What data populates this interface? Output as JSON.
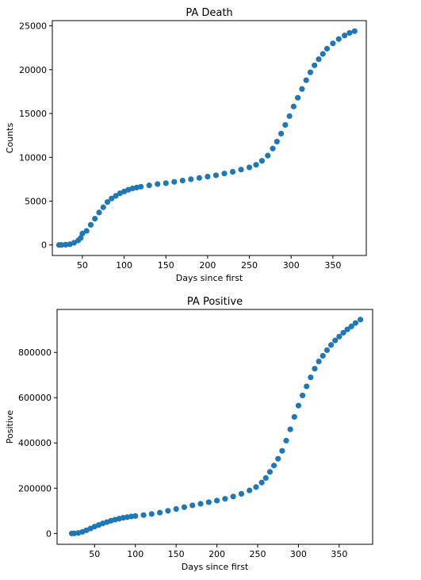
{
  "chart_data": [
    {
      "type": "scatter",
      "title": "PA Death",
      "xlabel": "Days since first",
      "ylabel": "Counts",
      "xlim": [
        14,
        390
      ],
      "ylim": [
        -1200,
        25600
      ],
      "xticks": [
        50,
        100,
        150,
        200,
        250,
        300,
        350
      ],
      "yticks": [
        0,
        5000,
        10000,
        15000,
        20000,
        25000
      ],
      "color": "#1f77b4",
      "series": [
        {
          "name": "PA Death",
          "points": [
            [
              22,
              0
            ],
            [
              25,
              5
            ],
            [
              30,
              30
            ],
            [
              35,
              80
            ],
            [
              40,
              250
            ],
            [
              45,
              520
            ],
            [
              48,
              800
            ],
            [
              50,
              1300
            ],
            [
              55,
              1600
            ],
            [
              60,
              2300
            ],
            [
              65,
              3000
            ],
            [
              70,
              3700
            ],
            [
              75,
              4300
            ],
            [
              80,
              4900
            ],
            [
              85,
              5300
            ],
            [
              90,
              5600
            ],
            [
              95,
              5900
            ],
            [
              100,
              6100
            ],
            [
              105,
              6300
            ],
            [
              110,
              6450
            ],
            [
              115,
              6550
            ],
            [
              120,
              6650
            ],
            [
              130,
              6800
            ],
            [
              140,
              6950
            ],
            [
              150,
              7050
            ],
            [
              160,
              7200
            ],
            [
              170,
              7350
            ],
            [
              180,
              7500
            ],
            [
              190,
              7650
            ],
            [
              200,
              7800
            ],
            [
              210,
              7950
            ],
            [
              220,
              8150
            ],
            [
              230,
              8350
            ],
            [
              240,
              8600
            ],
            [
              250,
              8850
            ],
            [
              258,
              9150
            ],
            [
              265,
              9600
            ],
            [
              272,
              10200
            ],
            [
              278,
              11000
            ],
            [
              283,
              11800
            ],
            [
              288,
              12700
            ],
            [
              293,
              13700
            ],
            [
              298,
              14700
            ],
            [
              303,
              15800
            ],
            [
              308,
              16800
            ],
            [
              313,
              17800
            ],
            [
              318,
              18800
            ],
            [
              323,
              19700
            ],
            [
              328,
              20500
            ],
            [
              333,
              21200
            ],
            [
              338,
              21800
            ],
            [
              343,
              22400
            ],
            [
              350,
              23000
            ],
            [
              357,
              23500
            ],
            [
              364,
              23900
            ],
            [
              370,
              24200
            ],
            [
              376,
              24400
            ]
          ]
        }
      ]
    },
    {
      "type": "scatter",
      "title": "PA Positive",
      "xlabel": "Days since first",
      "ylabel": "Positive",
      "xlim": [
        4,
        391
      ],
      "ylim": [
        -48000,
        990000
      ],
      "xticks": [
        50,
        100,
        150,
        200,
        250,
        300,
        350
      ],
      "yticks": [
        0,
        200000,
        400000,
        600000,
        800000
      ],
      "color": "#1f77b4",
      "series": [
        {
          "name": "PA Positive",
          "points": [
            [
              22,
              0
            ],
            [
              25,
              300
            ],
            [
              30,
              2000
            ],
            [
              35,
              7000
            ],
            [
              40,
              14000
            ],
            [
              45,
              22000
            ],
            [
              50,
              30000
            ],
            [
              55,
              37000
            ],
            [
              60,
              44000
            ],
            [
              65,
              50000
            ],
            [
              70,
              56000
            ],
            [
              75,
              61000
            ],
            [
              80,
              65000
            ],
            [
              85,
              69000
            ],
            [
              90,
              72000
            ],
            [
              95,
              75000
            ],
            [
              100,
              77000
            ],
            [
              110,
              81000
            ],
            [
              120,
              86000
            ],
            [
              130,
              92000
            ],
            [
              140,
              100000
            ],
            [
              150,
              108000
            ],
            [
              160,
              116000
            ],
            [
              170,
              124000
            ],
            [
              180,
              131000
            ],
            [
              190,
              138000
            ],
            [
              200,
              145000
            ],
            [
              210,
              153000
            ],
            [
              220,
              163000
            ],
            [
              230,
              175000
            ],
            [
              240,
              190000
            ],
            [
              248,
              205000
            ],
            [
              255,
              225000
            ],
            [
              260,
              245000
            ],
            [
              265,
              272000
            ],
            [
              270,
              300000
            ],
            [
              275,
              330000
            ],
            [
              280,
              365000
            ],
            [
              285,
              410000
            ],
            [
              290,
              460000
            ],
            [
              295,
              515000
            ],
            [
              300,
              565000
            ],
            [
              305,
              610000
            ],
            [
              310,
              650000
            ],
            [
              315,
              690000
            ],
            [
              320,
              728000
            ],
            [
              325,
              760000
            ],
            [
              330,
              785000
            ],
            [
              335,
              810000
            ],
            [
              340,
              833000
            ],
            [
              345,
              853000
            ],
            [
              350,
              870000
            ],
            [
              355,
              887000
            ],
            [
              360,
              902000
            ],
            [
              365,
              915000
            ],
            [
              370,
              930000
            ],
            [
              376,
              945000
            ]
          ]
        }
      ]
    }
  ]
}
